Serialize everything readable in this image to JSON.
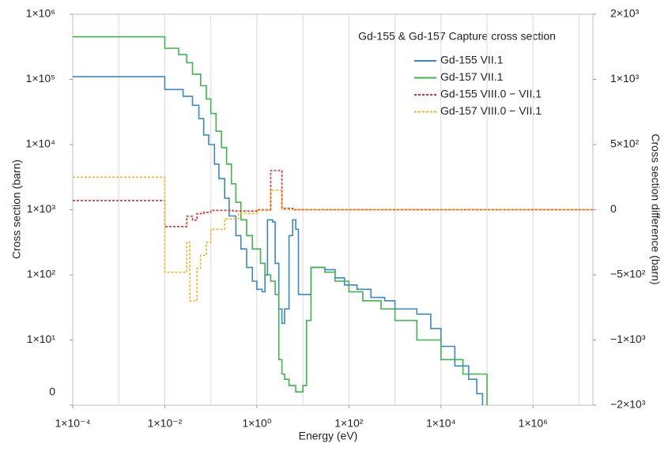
{
  "chart_data": {
    "type": "step",
    "title": "Gd-155 & Gd-157 Capture cross section",
    "x_label": "Energy (eV)",
    "y_label": "Cross section (barn)",
    "y2_label": "Cross section difference (barn)",
    "xscale": "log",
    "yscale": "log",
    "xlim": [
      0.0001,
      20000000
    ],
    "ylim": [
      1,
      1000000
    ],
    "y2lim": [
      -2000,
      2000
    ],
    "xticks": [
      {
        "value": 0.0001,
        "label": "1×10⁻⁴"
      },
      {
        "value": 0.01,
        "label": "1×10⁻²"
      },
      {
        "value": 1,
        "label": "1×10⁰"
      },
      {
        "value": 100,
        "label": "1×10²"
      },
      {
        "value": 10000,
        "label": "1×10⁴"
      },
      {
        "value": 1000000,
        "label": "1×10⁶"
      }
    ],
    "xgrid": [
      0.001,
      0.01,
      0.1,
      1,
      10,
      100,
      1000,
      10000,
      100000,
      1000000,
      10000000
    ],
    "yticks": [
      {
        "value": 1,
        "label": "0"
      },
      {
        "value": 10,
        "label": "1×10¹"
      },
      {
        "value": 100,
        "label": "1×10²"
      },
      {
        "value": 1000,
        "label": "1×10³"
      },
      {
        "value": 10000,
        "label": "1×10⁴"
      },
      {
        "value": 100000,
        "label": "1×10⁵"
      },
      {
        "value": 1000000,
        "label": "1×10⁶"
      }
    ],
    "y2ticks": [
      {
        "value": -2000,
        "label": "−2×10³"
      },
      {
        "value": -1000,
        "label": "−1×10³"
      },
      {
        "value": -500,
        "label": "−5×10²"
      },
      0,
      {
        "value": 500,
        "label": "5×10²"
      },
      {
        "value": 1000,
        "label": "1×10³"
      },
      {
        "value": 2000,
        "label": "2×10³"
      }
    ],
    "series": [
      {
        "name": "Gd-155 VII.1",
        "color": "#3a87c8",
        "dash": false,
        "x": [
          0.0001,
          0.01,
          0.025,
          0.04,
          0.055,
          0.07,
          0.09,
          0.12,
          0.15,
          0.2,
          0.25,
          0.35,
          0.45,
          0.6,
          0.8,
          1.0,
          1.3,
          1.5,
          1.7,
          2.2,
          2.5,
          3,
          3.5,
          4,
          5,
          6,
          7,
          8,
          12,
          15,
          30,
          50,
          80,
          150,
          300,
          600,
          1000,
          3000,
          6000,
          10000,
          20000,
          40000,
          60000,
          80000
        ],
        "values": [
          110000,
          70000,
          55000,
          40000,
          25000,
          14000,
          10000,
          5000,
          3000,
          1500,
          800,
          400,
          250,
          130,
          80,
          60,
          55,
          100,
          700,
          650,
          150,
          30,
          18,
          30,
          400,
          700,
          500,
          50,
          50,
          130,
          120,
          90,
          70,
          60,
          45,
          40,
          30,
          25,
          15,
          8,
          4,
          2.5,
          1.5,
          1
        ]
      },
      {
        "name": "Gd-157 VII.1",
        "color": "#3cb54a",
        "dash": false,
        "x": [
          0.0001,
          0.01,
          0.02,
          0.03,
          0.04,
          0.06,
          0.08,
          0.1,
          0.13,
          0.17,
          0.22,
          0.28,
          0.35,
          0.45,
          0.6,
          0.8,
          1.2,
          1.5,
          2,
          2.5,
          3,
          3.5,
          4,
          5,
          7,
          10,
          12,
          15,
          30,
          50,
          100,
          200,
          500,
          1000,
          3000,
          10000,
          30000,
          100000
        ],
        "values": [
          450000,
          300000,
          240000,
          180000,
          120000,
          80000,
          50000,
          30000,
          16000,
          9000,
          5000,
          2500,
          1300,
          700,
          400,
          250,
          150,
          100,
          80,
          50,
          5,
          3,
          2.5,
          2,
          1.6,
          2,
          20,
          130,
          110,
          80,
          55,
          40,
          30,
          20,
          10,
          5,
          3,
          1
        ]
      },
      {
        "name": "Gd-155 VIII.0 − VII.1",
        "color": "#e8282b",
        "dash": true,
        "axis": "y2",
        "x": [
          0.0001,
          0.01,
          0.03,
          0.04,
          0.05,
          0.07,
          0.1,
          0.3,
          1,
          2,
          3.5,
          6,
          20000000
        ],
        "values": [
          70,
          -130,
          -50,
          -80,
          -30,
          -20,
          -5,
          -10,
          0,
          300,
          10,
          0,
          0
        ]
      },
      {
        "name": "Gd-157 VIII.0 − VII.1",
        "color": "#f5b323",
        "dash": true,
        "axis": "y2",
        "x": [
          0.0001,
          0.01,
          0.03,
          0.035,
          0.05,
          0.06,
          0.08,
          0.1,
          0.2,
          0.4,
          1,
          2,
          3.5,
          20000000
        ],
        "values": [
          250,
          -480,
          -250,
          -700,
          -450,
          -350,
          -250,
          -150,
          -70,
          -30,
          -5,
          150,
          0,
          0
        ]
      }
    ]
  }
}
